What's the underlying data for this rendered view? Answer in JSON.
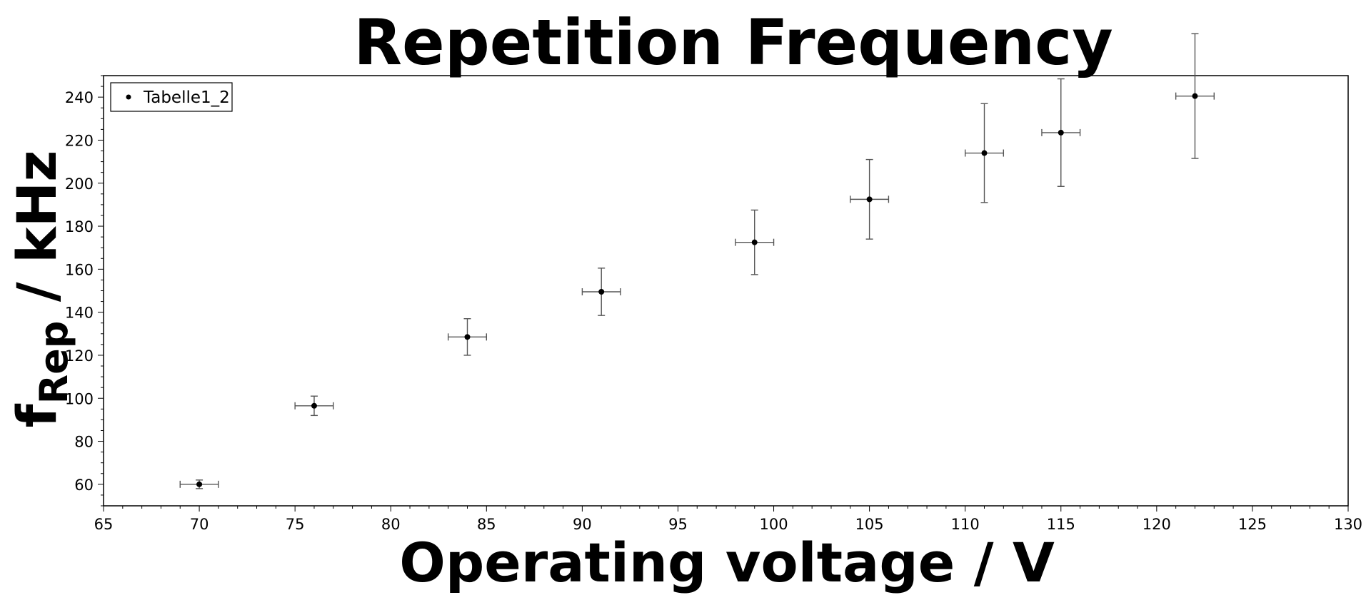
{
  "chart_data": {
    "type": "scatter",
    "title": "Repetition Frequency",
    "xlabel": "Operating voltage / V",
    "ylabel_main": "f",
    "ylabel_sub": "Rep",
    "ylabel_rest": " / kHz",
    "xlim": [
      65,
      130
    ],
    "ylim": [
      50,
      250
    ],
    "xticks": [
      65,
      70,
      75,
      80,
      85,
      90,
      95,
      100,
      105,
      110,
      115,
      120,
      125,
      130
    ],
    "yticks": [
      60,
      80,
      100,
      120,
      140,
      160,
      180,
      200,
      220,
      240
    ],
    "legend_position": "top-left",
    "grid": false,
    "series": [
      {
        "name": "Tabelle1_2",
        "color": "#000000",
        "points": [
          {
            "x": 70,
            "y": 60,
            "xerr": 1,
            "yerr": 2
          },
          {
            "x": 76,
            "y": 96.5,
            "xerr": 1,
            "yerr": 4.5
          },
          {
            "x": 84,
            "y": 128.5,
            "xerr": 1,
            "yerr": 8.5
          },
          {
            "x": 91,
            "y": 149.5,
            "xerr": 1,
            "yerr": 11
          },
          {
            "x": 99,
            "y": 172.5,
            "xerr": 1,
            "yerr": 15
          },
          {
            "x": 105,
            "y": 192.5,
            "xerr": 1,
            "yerr": 18.5
          },
          {
            "x": 111,
            "y": 214,
            "xerr": 1,
            "yerr": 23
          },
          {
            "x": 115,
            "y": 223.5,
            "xerr": 1,
            "yerr": 25
          },
          {
            "x": 122,
            "y": 240.5,
            "xerr": 1,
            "yerr": 29
          }
        ]
      }
    ]
  }
}
